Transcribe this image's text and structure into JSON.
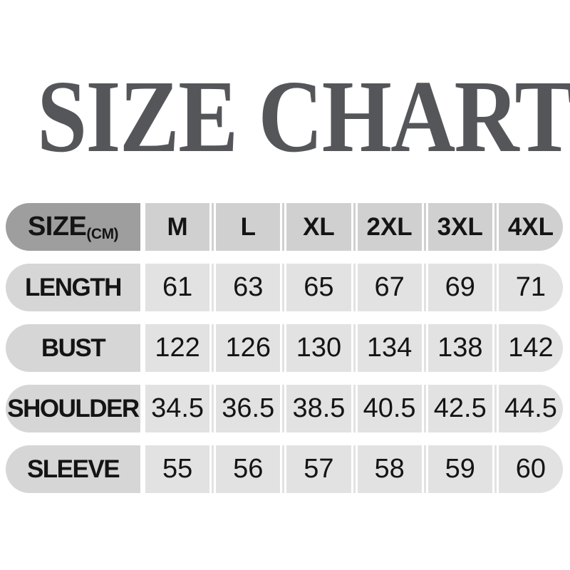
{
  "title": "SIZE CHART",
  "table": {
    "corner_label": "SIZE",
    "corner_unit": "(CM)"
  },
  "colors": {
    "background": "#ffffff",
    "title_text": "#55565a",
    "header_corner_bg": "#9e9e9e",
    "header_cell_bg": "#d0d0d0",
    "row_label_bg": "#d6d6d6",
    "row_value_bg": "#e2e2e2",
    "cell_text": "#141414"
  },
  "chart_data": {
    "type": "table",
    "title": "SIZE CHART",
    "unit": "CM",
    "columns": [
      "M",
      "L",
      "XL",
      "2XL",
      "3XL",
      "4XL"
    ],
    "rows": [
      {
        "label": "LENGTH",
        "values": [
          61,
          63,
          65,
          67,
          69,
          71
        ]
      },
      {
        "label": "BUST",
        "values": [
          122,
          126,
          130,
          134,
          138,
          142
        ]
      },
      {
        "label": "SHOULDER",
        "values": [
          34.5,
          36.5,
          38.5,
          40.5,
          42.5,
          44.5
        ]
      },
      {
        "label": "SLEEVE",
        "values": [
          55,
          56,
          57,
          58,
          59,
          60
        ]
      }
    ]
  }
}
